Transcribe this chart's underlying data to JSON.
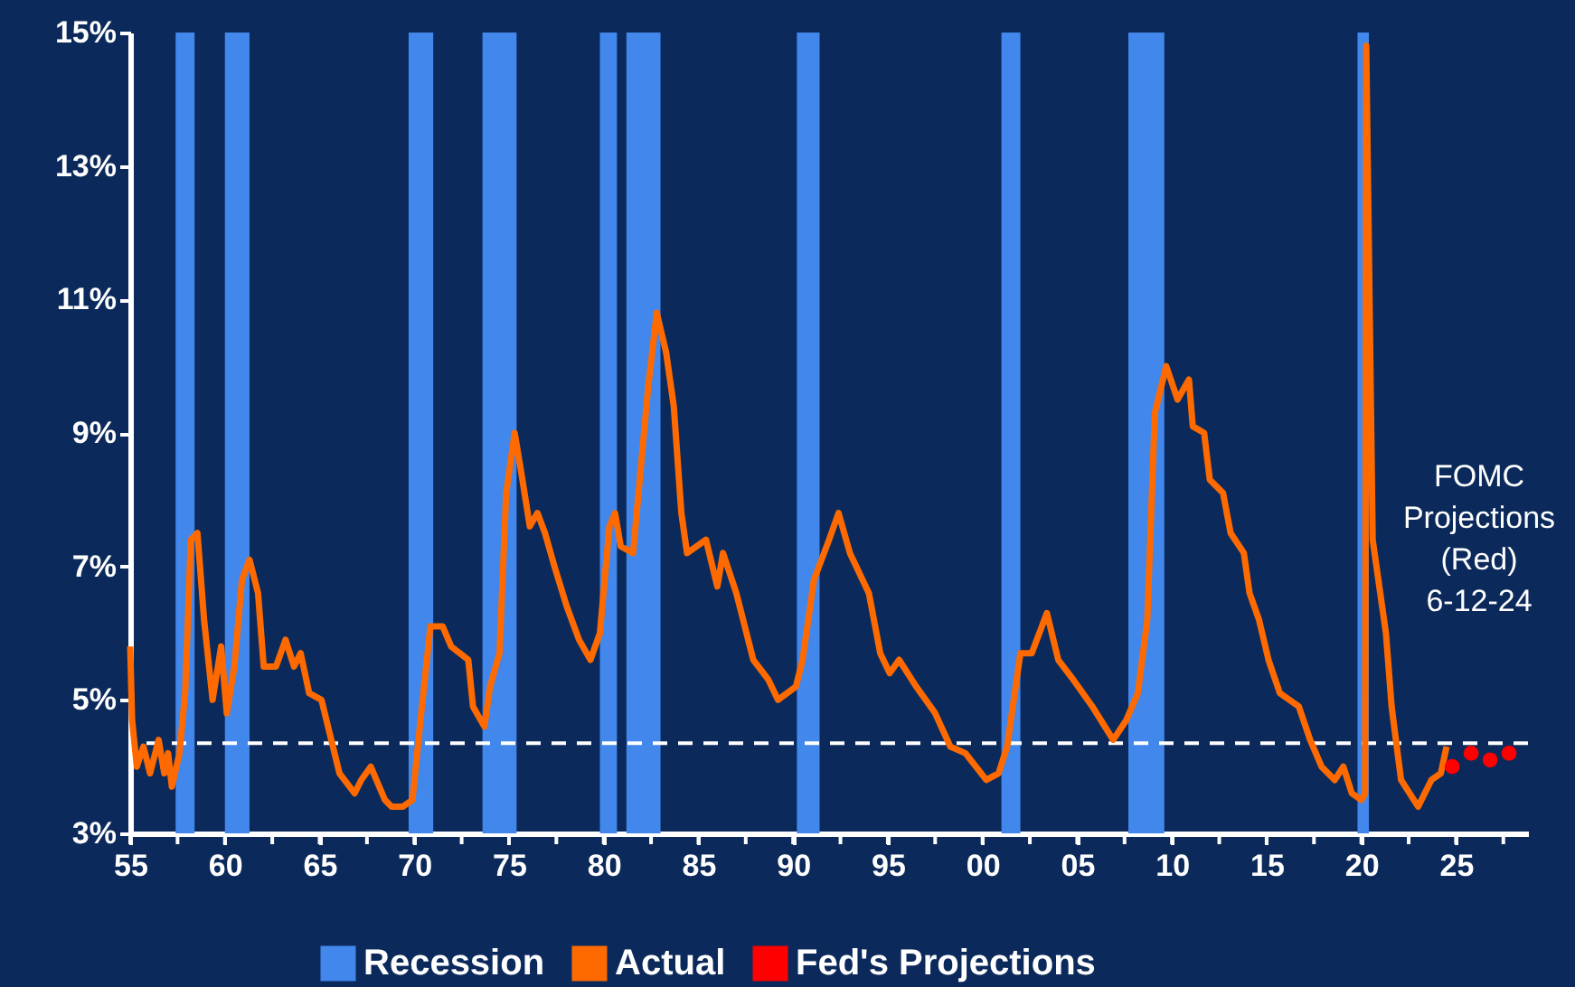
{
  "chart_data": {
    "type": "line",
    "xlim": [
      1955,
      2028.8
    ],
    "xticks": [
      {
        "value": 1955,
        "label": "55"
      },
      {
        "value": 1957.5,
        "label": null
      },
      {
        "value": 1960,
        "label": "60"
      },
      {
        "value": 1962.5,
        "label": null
      },
      {
        "value": 1965,
        "label": "65"
      },
      {
        "value": 1967.5,
        "label": null
      },
      {
        "value": 1970,
        "label": "70"
      },
      {
        "value": 1972.5,
        "label": null
      },
      {
        "value": 1975,
        "label": "75"
      },
      {
        "value": 1977.5,
        "label": null
      },
      {
        "value": 1980,
        "label": "80"
      },
      {
        "value": 1982.5,
        "label": null
      },
      {
        "value": 1985,
        "label": "85"
      },
      {
        "value": 1987.5,
        "label": null
      },
      {
        "value": 1990,
        "label": "90"
      },
      {
        "value": 1992.5,
        "label": null
      },
      {
        "value": 1995,
        "label": "95"
      },
      {
        "value": 1997.5,
        "label": null
      },
      {
        "value": 2000,
        "label": "00"
      },
      {
        "value": 2002.5,
        "label": null
      },
      {
        "value": 2005,
        "label": "05"
      },
      {
        "value": 2007.5,
        "label": null
      },
      {
        "value": 2010,
        "label": "10"
      },
      {
        "value": 2012.5,
        "label": null
      },
      {
        "value": 2015,
        "label": "15"
      },
      {
        "value": 2017.5,
        "label": null
      },
      {
        "value": 2020,
        "label": "20"
      },
      {
        "value": 2022.5,
        "label": null
      },
      {
        "value": 2025,
        "label": "25"
      },
      {
        "value": 2027.5,
        "label": null
      }
    ],
    "ylim": [
      3,
      15
    ],
    "yticks": [
      {
        "value": 3,
        "label": "3%"
      },
      {
        "value": 5,
        "label": "5%"
      },
      {
        "value": 7,
        "label": "7%"
      },
      {
        "value": 9,
        "label": "9%"
      },
      {
        "value": 11,
        "label": "11%"
      },
      {
        "value": 13,
        "label": "13%"
      },
      {
        "value": 15,
        "label": "15%"
      }
    ],
    "grid": false,
    "legend": "bottom",
    "line_style": "solid",
    "series": [
      {
        "name": "Actual",
        "color": "#ff6a00",
        "x": [
          1955.0,
          1955.1,
          1955.35,
          1955.7,
          1956.05,
          1956.5,
          1956.8,
          1957.0,
          1957.2,
          1957.6,
          1957.9,
          1958.2,
          1958.55,
          1958.9,
          1959.35,
          1959.8,
          1960.1,
          1960.5,
          1960.9,
          1961.3,
          1961.75,
          1962.05,
          1962.7,
          1963.2,
          1963.65,
          1964.0,
          1964.45,
          1965.1,
          1966.05,
          1966.85,
          1967.2,
          1967.7,
          1968.45,
          1968.8,
          1969.4,
          1969.9,
          1970.4,
          1970.85,
          1971.5,
          1971.95,
          1972.85,
          1973.1,
          1973.7,
          1974.0,
          1974.5,
          1974.85,
          1975.3,
          1975.65,
          1976.1,
          1976.5,
          1976.9,
          1977.4,
          1978.05,
          1978.7,
          1979.3,
          1979.8,
          1980.3,
          1980.6,
          1980.9,
          1981.55,
          1982.35,
          1982.8,
          1983.3,
          1983.7,
          1984.1,
          1984.4,
          1985.4,
          1986.0,
          1986.3,
          1987.0,
          1987.9,
          1988.7,
          1989.2,
          1990.15,
          1990.5,
          1991.1,
          1991.9,
          1992.4,
          1993.0,
          1994.0,
          1994.6,
          1995.1,
          1995.6,
          1996.5,
          1997.5,
          1998.3,
          1999.1,
          2000.2,
          2000.85,
          2001.3,
          2002.0,
          2002.6,
          2003.4,
          2004.0,
          2004.8,
          2005.8,
          2006.9,
          2007.6,
          2008.2,
          2008.7,
          2009.1,
          2009.7,
          2010.3,
          2010.9,
          2011.1,
          2011.7,
          2012.0,
          2012.7,
          2013.1,
          2013.8,
          2014.1,
          2014.6,
          2015.1,
          2015.7,
          2016.7,
          2017.3,
          2017.9,
          2018.6,
          2019.05,
          2019.5,
          2020.0,
          2020.2,
          2020.26,
          2020.6,
          2021.3,
          2021.6,
          2022.1,
          2023.0,
          2023.7,
          2024.2,
          2024.5
        ],
        "values": [
          5.8,
          4.7,
          4.0,
          4.3,
          3.9,
          4.4,
          3.9,
          4.2,
          3.7,
          4.2,
          5.1,
          7.4,
          7.5,
          6.2,
          5.0,
          5.8,
          4.8,
          5.5,
          6.8,
          7.1,
          6.6,
          5.5,
          5.5,
          5.9,
          5.5,
          5.7,
          5.1,
          5.0,
          3.9,
          3.6,
          3.8,
          4.0,
          3.5,
          3.4,
          3.4,
          3.5,
          4.9,
          6.1,
          6.1,
          5.8,
          5.6,
          4.9,
          4.6,
          5.2,
          5.7,
          8.1,
          9.0,
          8.4,
          7.6,
          7.8,
          7.5,
          7.0,
          6.4,
          5.9,
          5.6,
          6.0,
          7.6,
          7.8,
          7.3,
          7.2,
          9.7,
          10.8,
          10.2,
          9.4,
          7.8,
          7.2,
          7.4,
          6.7,
          7.2,
          6.6,
          5.6,
          5.3,
          5.0,
          5.2,
          5.6,
          6.8,
          7.4,
          7.8,
          7.2,
          6.6,
          5.7,
          5.4,
          5.6,
          5.2,
          4.8,
          4.3,
          4.2,
          3.8,
          3.9,
          4.3,
          5.7,
          5.7,
          6.3,
          5.6,
          5.3,
          4.9,
          4.4,
          4.7,
          5.1,
          6.2,
          9.3,
          10.0,
          9.5,
          9.8,
          9.1,
          9.0,
          8.3,
          8.1,
          7.5,
          7.2,
          6.6,
          6.2,
          5.6,
          5.1,
          4.9,
          4.4,
          4.0,
          3.8,
          4.0,
          3.6,
          3.5,
          3.6,
          14.8,
          7.4,
          6.0,
          4.9,
          3.8,
          3.4,
          3.8,
          3.9,
          4.3
        ]
      },
      {
        "name": "Fed's Projections",
        "type": "scatter",
        "color": "#ff0000",
        "x": [
          2024.8,
          2025.8,
          2026.8,
          2027.8
        ],
        "values": [
          4.0,
          4.2,
          4.1,
          4.2
        ]
      }
    ],
    "bands": [
      {
        "axis": "x",
        "from": 1957.4,
        "to": 1958.4,
        "label": "Recession",
        "color": "#4287ec"
      },
      {
        "axis": "x",
        "from": 1960.0,
        "to": 1961.3,
        "color": "#4287ec"
      },
      {
        "axis": "x",
        "from": 1969.7,
        "to": 1971.0,
        "color": "#4287ec"
      },
      {
        "axis": "x",
        "from": 1973.6,
        "to": 1975.4,
        "color": "#4287ec"
      },
      {
        "axis": "x",
        "from": 1979.8,
        "to": 1980.7,
        "color": "#4287ec"
      },
      {
        "axis": "x",
        "from": 1981.2,
        "to": 1983.0,
        "color": "#4287ec"
      },
      {
        "axis": "x",
        "from": 1990.2,
        "to": 1991.4,
        "color": "#4287ec"
      },
      {
        "axis": "x",
        "from": 2001.0,
        "to": 2002.0,
        "color": "#4287ec"
      },
      {
        "axis": "x",
        "from": 2007.7,
        "to": 2009.6,
        "color": "#4287ec"
      },
      {
        "axis": "x",
        "from": 2019.8,
        "to": 2020.4,
        "color": "#4287ec"
      }
    ],
    "ref_lines": [
      {
        "axis": "y",
        "value": 4.35,
        "color": "#ffffff",
        "line_style": "dashed"
      }
    ],
    "annotations": [
      "FOMC\nProjections\n(Red)\n6-12-24"
    ]
  }
}
